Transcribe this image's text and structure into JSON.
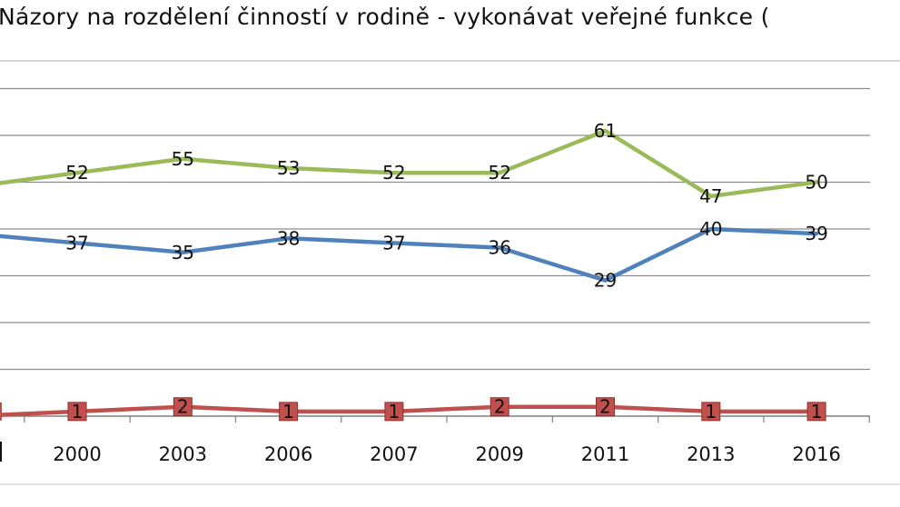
{
  "chart_data": {
    "type": "line",
    "title": "Názory na rozdělení činností v rodině - vykonávat veřejné funkce (",
    "categories": [
      "2000",
      "2003",
      "2006",
      "2007",
      "2009",
      "2011",
      "2013",
      "2016"
    ],
    "series": [
      {
        "key": "green",
        "color": "#9bbb59",
        "marker": "none",
        "values": [
          52,
          55,
          53,
          52,
          52,
          61,
          47,
          50
        ]
      },
      {
        "key": "blue",
        "color": "#4f81bd",
        "marker": "none",
        "values": [
          37,
          35,
          38,
          37,
          36,
          29,
          40,
          39
        ]
      },
      {
        "key": "red",
        "color": "#c0504d",
        "marker": "square",
        "values": [
          1,
          2,
          1,
          1,
          2,
          2,
          1,
          1
        ]
      }
    ],
    "ylim": [
      0,
      70
    ],
    "grid": true,
    "legend": "none"
  }
}
